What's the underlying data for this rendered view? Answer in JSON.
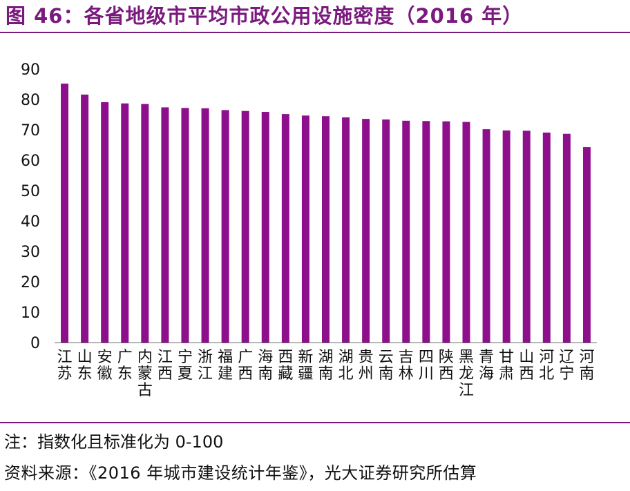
{
  "header": {
    "title": "图 46：各省地级市平均市政公用设施密度（2016 年）"
  },
  "footer": {
    "note": "注：指数化且标准化为 0-100",
    "source": "资料来源：《2016 年城市建设统计年鉴》，光大证券研究所估算"
  },
  "colors": {
    "accent": "#7b1a7e",
    "bar": "#8e0f8c"
  },
  "chart_data": {
    "type": "bar",
    "title": "",
    "xlabel": "",
    "ylabel": "",
    "ylim": [
      0,
      90
    ],
    "yticks": [
      0,
      10,
      20,
      30,
      40,
      50,
      60,
      70,
      80,
      90
    ],
    "grid": false,
    "legend": "none",
    "categories": [
      "江苏",
      "山东",
      "安徽",
      "广东",
      "内蒙古",
      "江西",
      "宁夏",
      "浙江",
      "福建",
      "广西",
      "海南",
      "西藏",
      "新疆",
      "湖南",
      "湖北",
      "贵州",
      "云南",
      "吉林",
      "四川",
      "陕西",
      "黑龙江",
      "青海",
      "甘肃",
      "山西",
      "河北",
      "辽宁",
      "河南"
    ],
    "values": [
      85.2,
      81.6,
      79.1,
      78.7,
      78.5,
      77.4,
      77.2,
      77.1,
      76.5,
      76.2,
      75.9,
      75.2,
      74.7,
      74.5,
      74.1,
      73.6,
      73.4,
      73.0,
      72.9,
      72.8,
      72.6,
      70.2,
      69.8,
      69.7,
      69.1,
      68.7,
      64.3
    ]
  }
}
